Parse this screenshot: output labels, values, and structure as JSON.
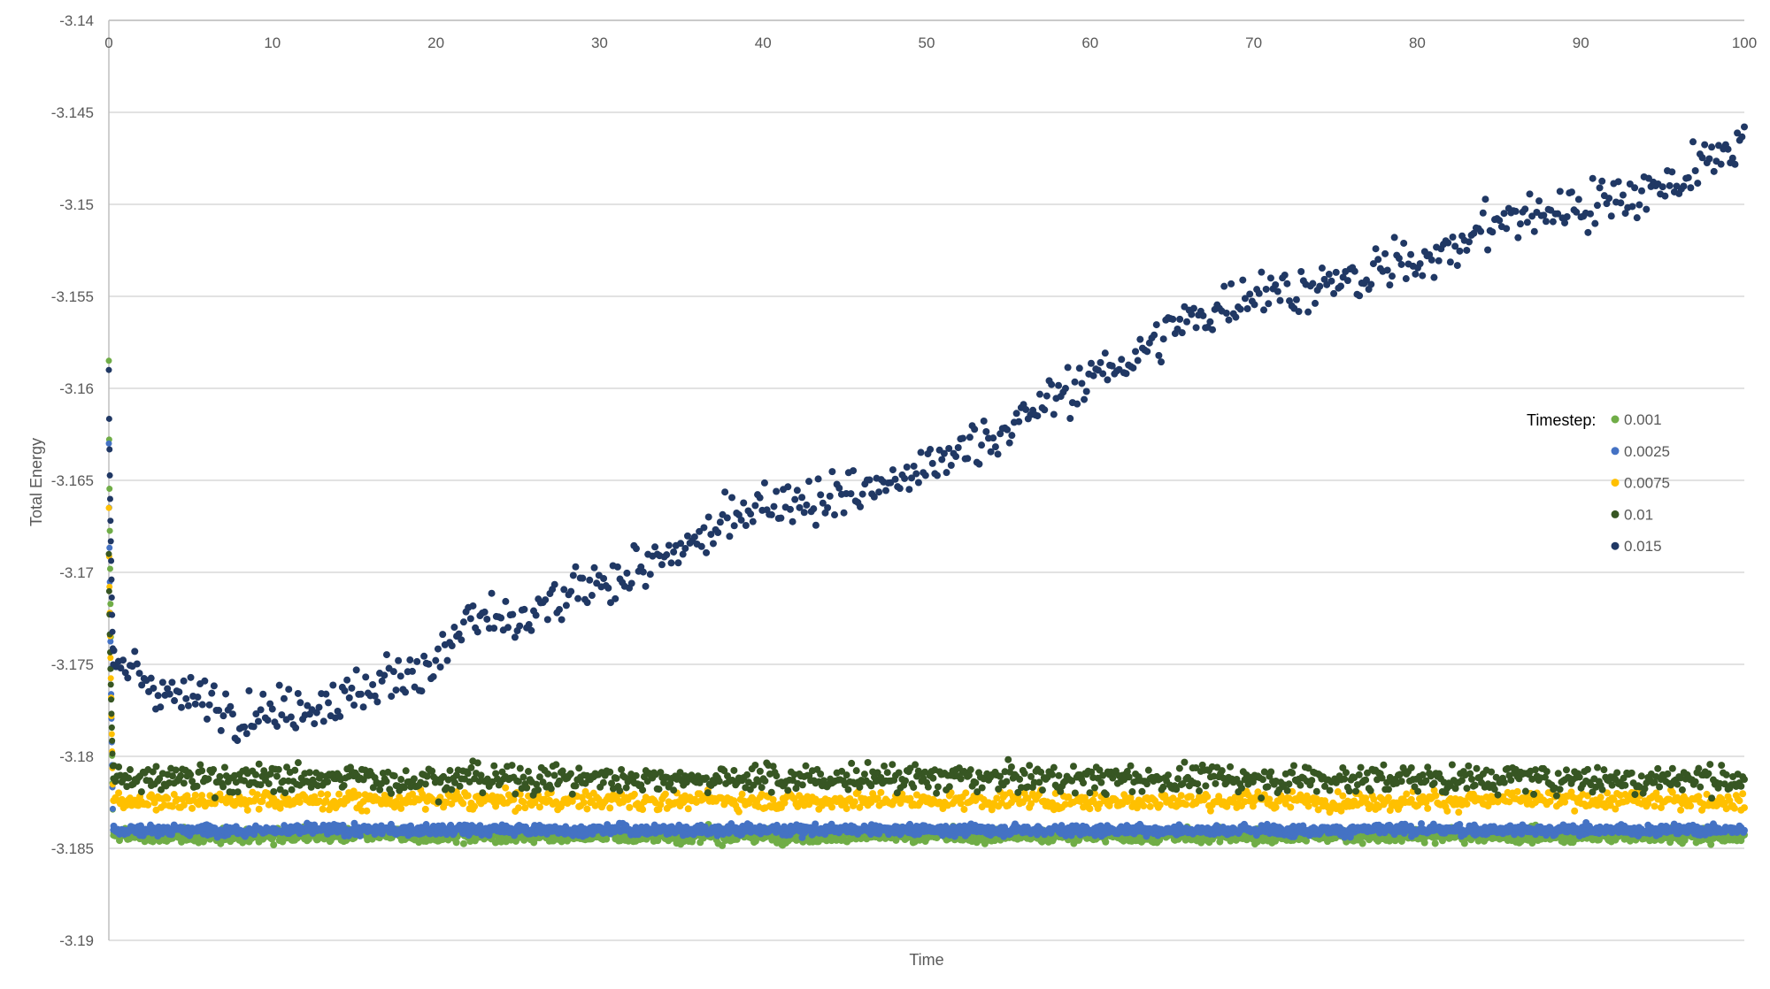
{
  "chart_data": {
    "type": "scatter",
    "title": "",
    "xlabel": "Time",
    "ylabel": "Total Energy",
    "xlim": [
      0,
      100
    ],
    "ylim": [
      -3.19,
      -3.14
    ],
    "x_ticks": [
      "0",
      "10",
      "20",
      "30",
      "40",
      "50",
      "60",
      "70",
      "80",
      "90",
      "100"
    ],
    "y_ticks": [
      "-3.14",
      "-3.145",
      "-3.15",
      "-3.155",
      "-3.16",
      "-3.165",
      "-3.17",
      "-3.175",
      "-3.18",
      "-3.185",
      "-3.19"
    ],
    "grid": true,
    "legend": {
      "title": "Timestep:",
      "placement": "right"
    },
    "series": [
      {
        "name": "0.001",
        "color": "#70AD47",
        "start_value": -3.1585,
        "points": 2000,
        "spread": 0.0004,
        "trend": {
          "t": [
            0,
            100
          ],
          "mean": [
            -3.1843,
            -3.1843
          ]
        }
      },
      {
        "name": "0.0025",
        "color": "#4472C4",
        "start_value": -3.163,
        "points": 2000,
        "spread": 0.0003,
        "trend": {
          "t": [
            0,
            100
          ],
          "mean": [
            -3.184,
            -3.184
          ]
        }
      },
      {
        "name": "0.0075",
        "color": "#FFC000",
        "start_value": -3.1665,
        "points": 1000,
        "spread": 0.0005,
        "trend": {
          "t": [
            0,
            100
          ],
          "mean": [
            -3.1824,
            -3.1824
          ]
        }
      },
      {
        "name": "0.01",
        "color": "#375623",
        "start_value": -3.169,
        "points": 1000,
        "spread": 0.0008,
        "trend": {
          "t": [
            0,
            100
          ],
          "mean": [
            -3.1812,
            -3.1812
          ]
        }
      },
      {
        "name": "0.015",
        "color": "#203864",
        "start_value": -3.159,
        "points": 700,
        "spread": 0.0014,
        "trend": {
          "t": [
            0,
            5,
            10,
            15,
            20,
            22,
            25,
            30,
            35,
            40,
            45,
            50,
            55,
            60,
            65,
            70,
            75,
            80,
            85,
            90,
            95,
            100
          ],
          "mean": [
            -3.175,
            -3.177,
            -3.1775,
            -3.1765,
            -3.175,
            -3.1725,
            -3.173,
            -3.1705,
            -3.169,
            -3.166,
            -3.1658,
            -3.1645,
            -3.162,
            -3.1595,
            -3.157,
            -3.1545,
            -3.1545,
            -3.153,
            -3.151,
            -3.15,
            -3.149,
            -3.1465
          ]
        }
      }
    ]
  }
}
